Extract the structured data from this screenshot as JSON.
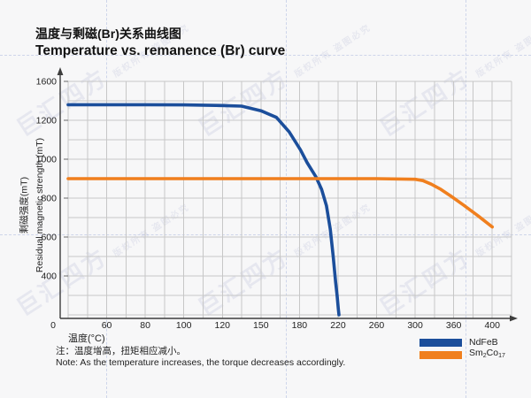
{
  "watermark": {
    "logo": "巨汇四方",
    "rights": "版权所有 盗图必究"
  },
  "header": {
    "title_zh": "温度与剩磁(Br)关系曲线图",
    "title_en": "Temperature vs. remanence (Br) curve"
  },
  "chart_data": {
    "type": "line",
    "title": "温度与剩磁(Br)关系曲线图 / Temperature vs. remanence (Br) curve",
    "xlabel": "温度(°C)",
    "ylabel_zh": "剩磁强度(mT)",
    "ylabel_en": "Residual magnetic strength (mT)",
    "x_ticks": [
      0,
      60,
      80,
      100,
      120,
      150,
      180,
      220,
      260,
      300,
      360,
      400
    ],
    "y_ticks": [
      1600,
      1200,
      1000,
      800,
      600,
      400,
      0
    ],
    "xlim": [
      0,
      400
    ],
    "ylim": [
      0,
      1600
    ],
    "grid": true,
    "grid_note": "uniform decorative grid; tick labels evenly spaced (non-linear values)",
    "legend_position": "bottom-right",
    "series": [
      {
        "name": "NdFeB",
        "color": "#1b4e9b",
        "legend_parts": [
          {
            "t": "NdFeB"
          }
        ],
        "points": [
          [
            0,
            1360
          ],
          [
            60,
            1360
          ],
          [
            80,
            1360
          ],
          [
            100,
            1358
          ],
          [
            120,
            1352
          ],
          [
            135,
            1345
          ],
          [
            150,
            1298
          ],
          [
            162,
            1230
          ],
          [
            172,
            1140
          ],
          [
            181,
            1048
          ],
          [
            188,
            982
          ],
          [
            197,
            910
          ],
          [
            203,
            845
          ],
          [
            208,
            760
          ],
          [
            212,
            640
          ],
          [
            215,
            500
          ],
          [
            217.5,
            340
          ],
          [
            219,
            200
          ],
          [
            220.3,
            60
          ],
          [
            221,
            0
          ]
        ]
      },
      {
        "name": "Sm2Co17",
        "color": "#f07f1e",
        "legend_parts": [
          {
            "t": "Sm"
          },
          {
            "t": "2",
            "sub": true
          },
          {
            "t": "Co"
          },
          {
            "t": "17",
            "sub": true
          }
        ],
        "points": [
          [
            0,
            900
          ],
          [
            60,
            900
          ],
          [
            80,
            900
          ],
          [
            100,
            900
          ],
          [
            120,
            900
          ],
          [
            150,
            900
          ],
          [
            180,
            900
          ],
          [
            220,
            900
          ],
          [
            260,
            900
          ],
          [
            300,
            897
          ],
          [
            312,
            890
          ],
          [
            325,
            872
          ],
          [
            340,
            845
          ],
          [
            355,
            812
          ],
          [
            370,
            765
          ],
          [
            385,
            710
          ],
          [
            400,
            652
          ]
        ]
      }
    ]
  },
  "note": {
    "zh": "注：温度增高，扭矩相应减小。",
    "en": "Note: As the temperature increases, the torque decreases accordingly."
  }
}
